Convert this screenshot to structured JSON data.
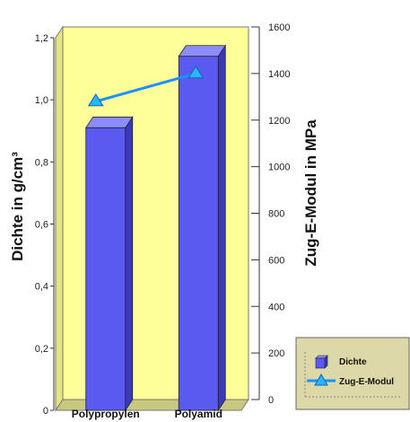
{
  "chart_data": {
    "type": "bar",
    "categories": [
      "Polypropylen",
      "Polyamid"
    ],
    "series": [
      {
        "name": "Dichte",
        "kind": "bar",
        "axis": "left",
        "values": [
          0.91,
          1.14
        ]
      },
      {
        "name": "Zug-E-Modul",
        "kind": "line",
        "axis": "right",
        "values": [
          1280,
          1400
        ]
      }
    ],
    "ylabel": "Dichte in g/cm³",
    "y2label": "Zug-E-Modul in MPa",
    "ylim": [
      0,
      1.2
    ],
    "y2lim": [
      0,
      1600
    ],
    "yticks": [
      "0",
      "0,2",
      "0,4",
      "0,6",
      "0,8",
      "1,0",
      "1,2"
    ],
    "y2ticks": [
      "0",
      "200",
      "400",
      "600",
      "800",
      "1000",
      "1200",
      "1400",
      "1600"
    ],
    "grid": false,
    "legend_position": "bottom-right",
    "colors": {
      "plot_wall": "#ffff99",
      "plot_wall_side": "#e6e680",
      "plot_floor": "#c8c880",
      "bar_front": "#5a5af0",
      "bar_side": "#3a3ab8",
      "bar_top": "#8c8cff",
      "line": "#1e90ff",
      "marker": "#29b6f6",
      "legend_bg": "#dcd8a8"
    }
  }
}
